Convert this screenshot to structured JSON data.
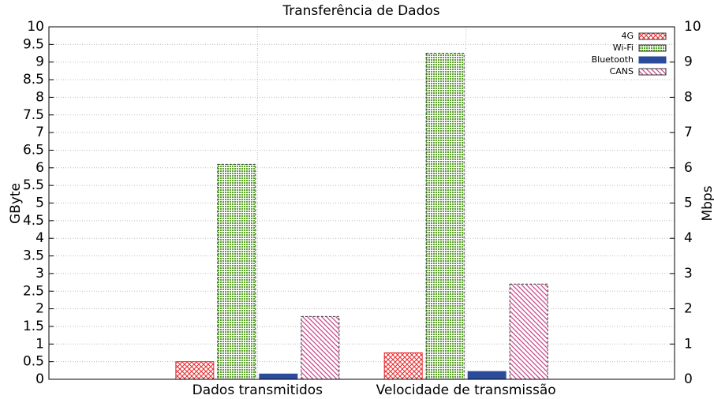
{
  "chart_data": {
    "type": "bar",
    "title": "Transferência de Dados",
    "categories": [
      "Dados transmitidos",
      "Velocidade de transmissão"
    ],
    "series": [
      {
        "name": "4G",
        "color": "#e8282c",
        "pattern": "crosshatch",
        "values": [
          0.5,
          0.75
        ]
      },
      {
        "name": "Wi-Fi",
        "color": "#5aa02c",
        "pattern": "dots",
        "values": [
          6.1,
          9.25
        ]
      },
      {
        "name": "Bluetooth",
        "color": "#2b4c9b",
        "pattern": "solid",
        "values": [
          0.15,
          0.22
        ]
      },
      {
        "name": "CANS",
        "color": "#c8488c",
        "pattern": "stripes",
        "values": [
          1.78,
          2.7
        ]
      }
    ],
    "ylabel": "GByte",
    "y2label": "Mbps",
    "ylim": [
      0,
      10
    ],
    "yticks": [
      0,
      0.5,
      1,
      1.5,
      2,
      2.5,
      3,
      3.5,
      4,
      4.5,
      5,
      5.5,
      6,
      6.5,
      7,
      7.5,
      8,
      8.5,
      9,
      9.5,
      10
    ],
    "y2lim": [
      0,
      10
    ],
    "y2ticks": [
      0,
      1,
      2,
      3,
      4,
      5,
      6,
      7,
      8,
      9,
      10
    ],
    "grid": true,
    "legend": "top-right"
  }
}
